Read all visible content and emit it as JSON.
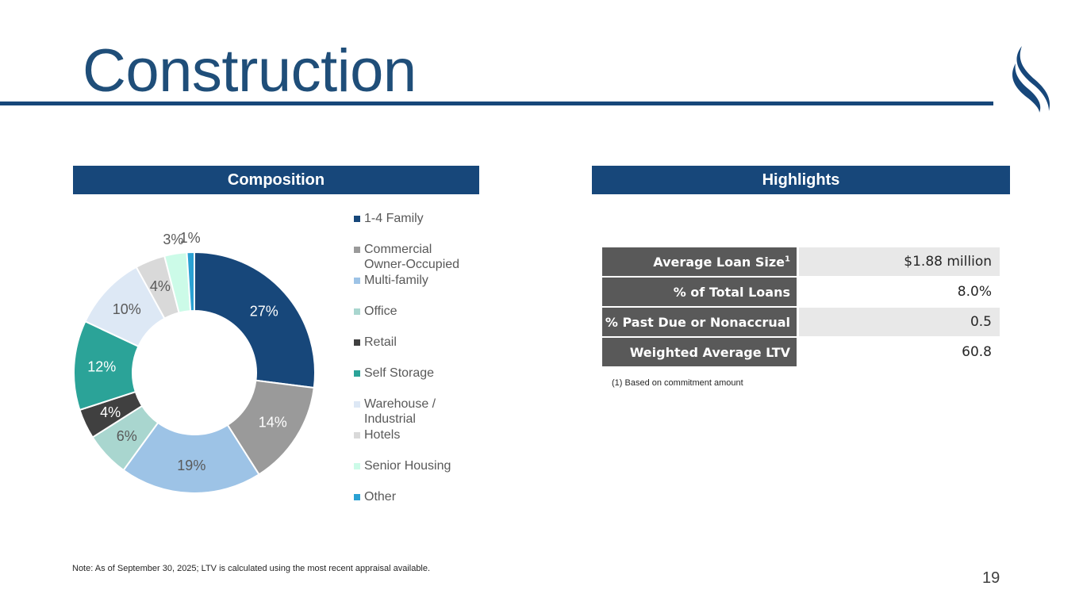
{
  "title": "Construction",
  "sections": {
    "composition": "Composition",
    "highlights": "Highlights"
  },
  "colors": {
    "brand_navy": "#17477a",
    "title_blue": "#1f4e79",
    "label_gray": "#595959",
    "row_alt": "#e8e8e8"
  },
  "chart_data": {
    "type": "pie",
    "subtype": "donut",
    "categories": [
      "1-4 Family",
      "Commercial Owner-Occupied",
      "Multi-family",
      "Office",
      "Retail",
      "Self Storage",
      "Warehouse / Industrial",
      "Hotels",
      "Senior Housing",
      "Other"
    ],
    "legend_lines": [
      [
        "1-4 Family"
      ],
      [
        "Commercial",
        "Owner-Occupied"
      ],
      [
        "Multi-family"
      ],
      [
        "Office"
      ],
      [
        "Retail"
      ],
      [
        "Self Storage"
      ],
      [
        "Warehouse /",
        "Industrial"
      ],
      [
        "Hotels"
      ],
      [
        "Senior Housing"
      ],
      [
        "Other"
      ]
    ],
    "values": [
      27,
      14,
      19,
      6,
      4,
      12,
      10,
      4,
      3,
      1
    ],
    "labels": [
      "27%",
      "14%",
      "19%",
      "6%",
      "4%",
      "12%",
      "10%",
      "4%",
      "3%",
      "1%"
    ],
    "colors": [
      "#17477a",
      "#9a9a9a",
      "#9dc3e6",
      "#a9d6cf",
      "#404040",
      "#2ba398",
      "#dde8f5",
      "#d9d9d9",
      "#ccfbe8",
      "#2aa1d3"
    ],
    "label_colors": [
      "#ffffff",
      "#ffffff",
      "#595959",
      "#595959",
      "#ffffff",
      "#ffffff",
      "#595959",
      "#595959",
      "#595959",
      "#595959"
    ],
    "legend_position": "right"
  },
  "highlights": {
    "rows": [
      {
        "label": "Average Loan Size",
        "sup": "1",
        "value": "$1.88 million"
      },
      {
        "label": "% of Total Loans",
        "sup": "",
        "value": "8.0%"
      },
      {
        "label": "% Past Due or Nonaccrual",
        "sup": "",
        "value": "0.5"
      },
      {
        "label": "Weighted Average LTV",
        "sup": "",
        "value": "60.8"
      }
    ],
    "footnote": "(1) Based on commitment amount"
  },
  "note": "Note: As of September 30, 2025; LTV is calculated using the most recent appraisal available.",
  "page_number": "19"
}
